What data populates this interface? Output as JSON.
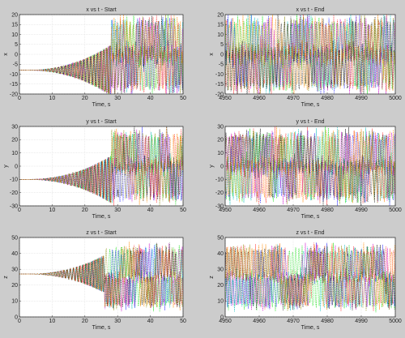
{
  "background_color": "#cccccc",
  "series_colors": [
    "#00dd00",
    "#ff3333",
    "#2222ff",
    "#00bbbb",
    "#cc00cc",
    "#888800",
    "#111111",
    "#ff8800"
  ],
  "chart_data": [
    {
      "type": "line",
      "title": "x vs t - Start",
      "xlabel": "Time, s",
      "ylabel": "x",
      "xlim": [
        0,
        50
      ],
      "ylim": [
        -20,
        20
      ],
      "xticks": [
        0,
        10,
        20,
        30,
        40,
        50
      ],
      "yticks": [
        -20,
        -15,
        -10,
        -5,
        0,
        5,
        10,
        15,
        20
      ],
      "grid": true,
      "pattern": {
        "start_value": -8,
        "spread": 13,
        "spread_start_t": 2,
        "chaos_t": 28
      }
    },
    {
      "type": "line",
      "title": "x vs t - End",
      "xlabel": "Time, s",
      "ylabel": "x",
      "xlim": [
        4950,
        5000
      ],
      "ylim": [
        -20,
        20
      ],
      "xticks": [
        4950,
        4960,
        4970,
        4980,
        4990,
        5000
      ],
      "yticks": [
        -20,
        -15,
        -10,
        -5,
        0,
        5,
        10,
        15,
        20
      ],
      "grid": true,
      "pattern": {
        "start_value": -8,
        "spread": 13,
        "spread_start_t": 4950,
        "chaos_t": 4950
      }
    },
    {
      "type": "line",
      "title": "y vs t - Start",
      "xlabel": "Time, s",
      "ylabel": "y",
      "xlim": [
        0,
        50
      ],
      "ylim": [
        -30,
        30
      ],
      "xticks": [
        0,
        10,
        20,
        30,
        40,
        50
      ],
      "yticks": [
        -30,
        -20,
        -10,
        0,
        10,
        20,
        30
      ],
      "grid": true,
      "pattern": {
        "start_value": -10,
        "spread": 18,
        "spread_start_t": 2,
        "chaos_t": 28
      }
    },
    {
      "type": "line",
      "title": "y vs t - End",
      "xlabel": "Time, s",
      "ylabel": "y",
      "xlim": [
        4950,
        5000
      ],
      "ylim": [
        -30,
        30
      ],
      "xticks": [
        4950,
        4960,
        4970,
        4980,
        4990,
        5000
      ],
      "yticks": [
        -30,
        -20,
        -10,
        0,
        10,
        20,
        30
      ],
      "grid": true,
      "pattern": {
        "start_value": -10,
        "spread": 18,
        "spread_start_t": 4950,
        "chaos_t": 4950
      }
    },
    {
      "type": "line",
      "title": "z vs t - Start",
      "xlabel": "Time, s",
      "ylabel": "z",
      "xlim": [
        0,
        50
      ],
      "ylim": [
        0,
        50
      ],
      "xticks": [
        0,
        10,
        20,
        30,
        40,
        50
      ],
      "yticks": [
        0,
        10,
        20,
        30,
        40,
        50
      ],
      "grid": true,
      "pattern": {
        "start_value": 27,
        "spread": 12,
        "spread_start_t": 2,
        "chaos_t": 26
      }
    },
    {
      "type": "line",
      "title": "z vs t - End",
      "xlabel": "Time, s",
      "ylabel": "z",
      "xlim": [
        4950,
        5000
      ],
      "ylim": [
        0,
        50
      ],
      "xticks": [
        4950,
        4960,
        4970,
        4980,
        4990,
        5000
      ],
      "yticks": [
        0,
        10,
        20,
        30,
        40,
        50
      ],
      "grid": true,
      "pattern": {
        "start_value": 24,
        "spread": 12,
        "spread_start_t": 4950,
        "chaos_t": 4950
      }
    }
  ]
}
